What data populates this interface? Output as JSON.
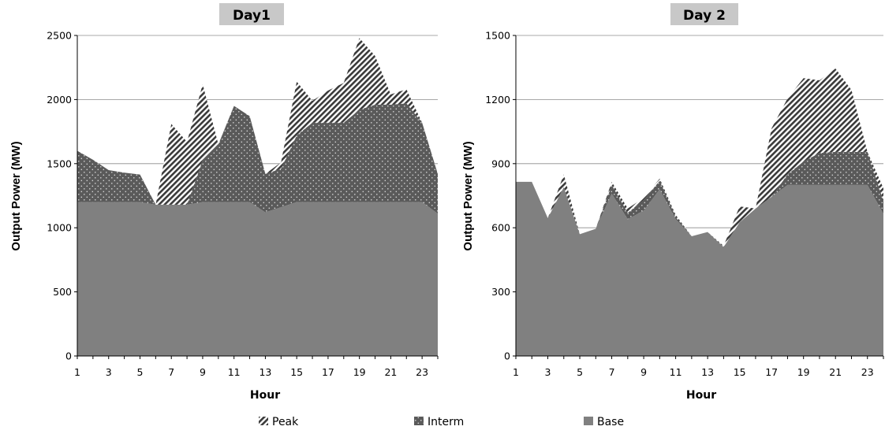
{
  "legend": {
    "entries": [
      {
        "name": "Peak",
        "pattern": "hatch",
        "color": "#3a3a3a"
      },
      {
        "name": "Interm",
        "pattern": "dots",
        "color": "#5a5a5a"
      },
      {
        "name": "Base",
        "pattern": "solid",
        "color": "#808080"
      }
    ]
  },
  "chart_data": [
    {
      "type": "area",
      "stacked": true,
      "title": "Day1",
      "xlabel": "Hour",
      "ylabel": "Output Power (MW)",
      "ylim": [
        0,
        2500
      ],
      "yticks": [
        0,
        500,
        1000,
        1500,
        2000,
        2500
      ],
      "xlim": [
        1,
        24
      ],
      "xticks": [
        1,
        3,
        5,
        7,
        9,
        11,
        13,
        15,
        17,
        19,
        21,
        23
      ],
      "x": [
        1,
        2,
        3,
        4,
        5,
        6,
        7,
        8,
        9,
        10,
        11,
        12,
        13,
        14,
        15,
        16,
        17,
        18,
        19,
        20,
        21,
        22,
        23,
        24
      ],
      "grid": "horizontal",
      "legend_position": "bottom",
      "series": [
        {
          "name": "Base",
          "values": [
            1200,
            1200,
            1200,
            1200,
            1200,
            1180,
            1180,
            1180,
            1200,
            1200,
            1200,
            1200,
            1120,
            1160,
            1200,
            1200,
            1200,
            1200,
            1200,
            1200,
            1200,
            1200,
            1200,
            1110
          ]
        },
        {
          "name": "Interm",
          "values": [
            400,
            330,
            250,
            230,
            215,
            0,
            0,
            0,
            330,
            450,
            750,
            670,
            300,
            300,
            520,
            620,
            620,
            620,
            720,
            760,
            760,
            770,
            620,
            310
          ]
        },
        {
          "name": "Peak",
          "values": [
            0,
            0,
            0,
            0,
            0,
            0,
            630,
            490,
            590,
            0,
            0,
            0,
            0,
            50,
            420,
            170,
            250,
            310,
            560,
            380,
            80,
            110,
            0,
            0
          ]
        }
      ]
    },
    {
      "type": "area",
      "stacked": true,
      "title": "Day 2",
      "xlabel": "Hour",
      "ylabel": "Output Power (MW)",
      "ylim": [
        0,
        1500
      ],
      "yticks": [
        0,
        300,
        600,
        900,
        1200,
        1500
      ],
      "xlim": [
        1,
        24
      ],
      "xticks": [
        1,
        3,
        5,
        7,
        9,
        11,
        13,
        15,
        17,
        19,
        21,
        23
      ],
      "x": [
        1,
        2,
        3,
        4,
        5,
        6,
        7,
        8,
        9,
        10,
        11,
        12,
        13,
        14,
        15,
        16,
        17,
        18,
        19,
        20,
        21,
        22,
        23,
        24
      ],
      "grid": "horizontal",
      "legend_position": "bottom",
      "series": [
        {
          "name": "Base",
          "values": [
            815,
            815,
            645,
            790,
            570,
            595,
            760,
            640,
            680,
            780,
            640,
            560,
            580,
            510,
            625,
            690,
            745,
            800,
            800,
            800,
            800,
            800,
            800,
            665
          ]
        },
        {
          "name": "Interm",
          "values": [
            0,
            0,
            0,
            0,
            0,
            0,
            40,
            30,
            50,
            40,
            10,
            0,
            0,
            0,
            0,
            0,
            0,
            50,
            110,
            150,
            155,
            155,
            155,
            60
          ]
        },
        {
          "name": "Peak",
          "values": [
            0,
            0,
            0,
            60,
            0,
            0,
            15,
            20,
            10,
            10,
            10,
            0,
            0,
            5,
            75,
            0,
            320,
            355,
            390,
            340,
            390,
            290,
            0,
            60
          ]
        }
      ]
    }
  ]
}
